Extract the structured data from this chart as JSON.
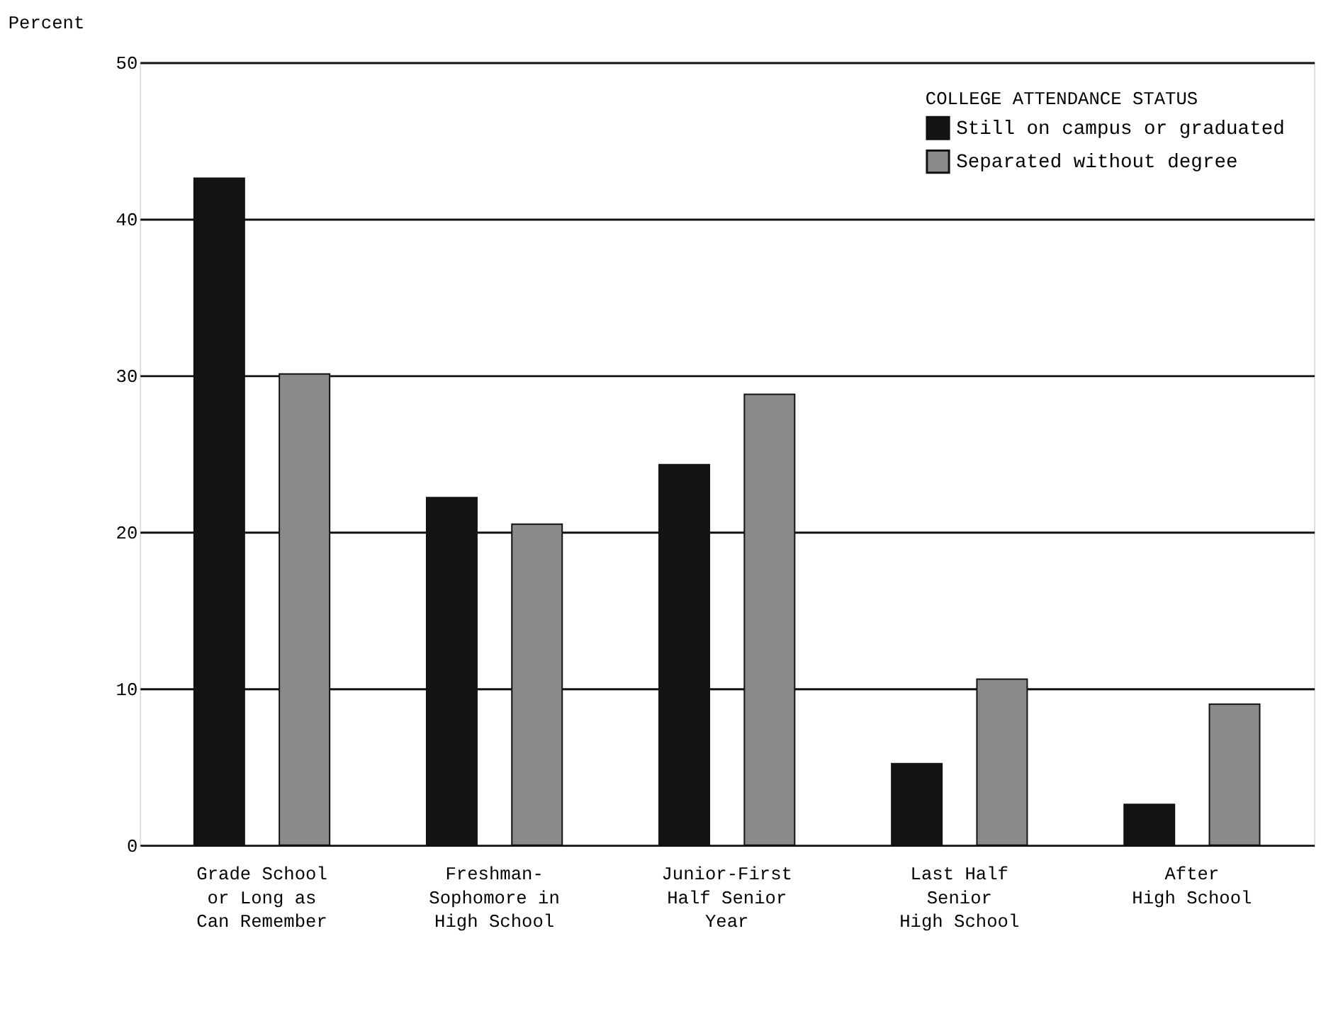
{
  "chart_data": {
    "type": "bar",
    "ylabel": "Percent",
    "legend_title": "COLLEGE ATTENDANCE STATUS",
    "categories": [
      "Grade School\nor Long as\nCan Remember",
      "Freshman-\nSophomore in\nHigh School",
      "Junior-First\nHalf Senior\nYear",
      "Last Half\nSenior\nHigh School",
      "After\nHigh School"
    ],
    "series": [
      {
        "name": "Still on campus or graduated",
        "color": "#141414",
        "values": [
          42.6,
          22.2,
          24.3,
          5.2,
          2.6
        ]
      },
      {
        "name": "Separated without degree",
        "color": "#8a8a8a",
        "values": [
          30.1,
          20.5,
          28.8,
          10.6,
          9.0
        ]
      }
    ],
    "ylim": [
      0,
      50
    ],
    "yticks": [
      0,
      10,
      20,
      30,
      40,
      50
    ],
    "grid": "y",
    "legend": "top right"
  }
}
